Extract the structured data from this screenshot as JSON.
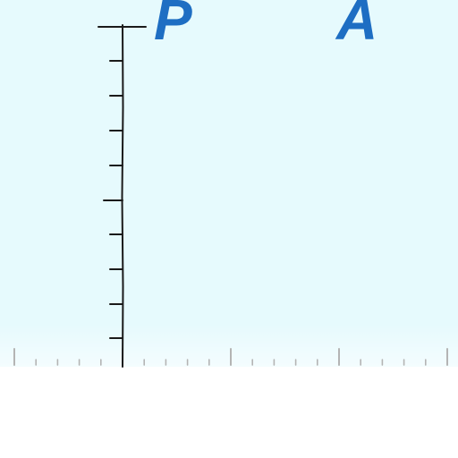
{
  "labels": {
    "left": "P",
    "right": "A"
  },
  "colors": {
    "label": "#1e6ec3",
    "background": "#e6fafd",
    "axis": "#1a1a1a",
    "ruler_tick": "#b4b4b4"
  }
}
